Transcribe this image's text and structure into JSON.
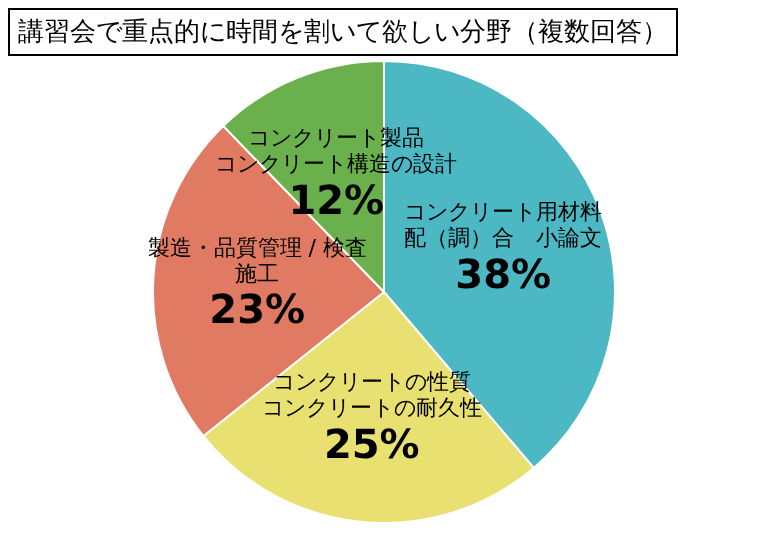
{
  "chart_data": {
    "type": "pie",
    "title": "講習会で重点的に時間を割いて欲しい分野（複数回答）",
    "categories": [
      "コンクリート用材料配（調）合　小論文",
      "コンクリートの性質コンクリートの耐久性",
      "製造・品質管理 / 検査施工",
      "コンクリート製品コンクリート構造の設計"
    ],
    "values": [
      38,
      25,
      23,
      12
    ],
    "value_labels": [
      "38%",
      "25%",
      "23%",
      "12%"
    ],
    "colors": [
      "#4bb8c4",
      "#e8e070",
      "#e07a62",
      "#6ab04c"
    ],
    "legend": false
  }
}
